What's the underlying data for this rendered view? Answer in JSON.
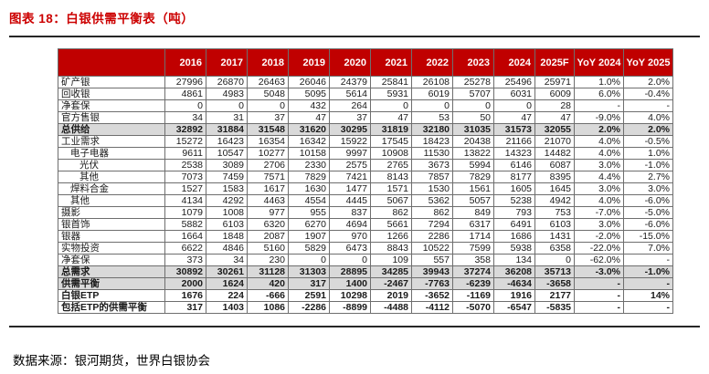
{
  "page": {
    "title": "图表 18：白银供需平衡表（吨）",
    "source": "数据来源：银河期货，世界白银协会"
  },
  "colors": {
    "title": "#CC0000",
    "header_bg": "#C00000",
    "header_text": "#FFFFFF",
    "highlight_bg": "#D9D9D9"
  },
  "table": {
    "label_header": "",
    "columns": [
      "2016",
      "2017",
      "2018",
      "2019",
      "2020",
      "2021",
      "2022",
      "2023",
      "2024",
      "2025F",
      "YoY 2024",
      "YoY 2025"
    ],
    "rows": [
      {
        "label": "矿产银",
        "indent": 0,
        "style": "normal",
        "values": [
          "27996",
          "26870",
          "26463",
          "26046",
          "24379",
          "25841",
          "26108",
          "25278",
          "25496",
          "25971",
          "1.0%",
          "2.0%"
        ]
      },
      {
        "label": "回收银",
        "indent": 0,
        "style": "normal",
        "values": [
          "4861",
          "4983",
          "5048",
          "5095",
          "5614",
          "5931",
          "6019",
          "5707",
          "6031",
          "6009",
          "6.0%",
          "-0.4%"
        ]
      },
      {
        "label": "净套保",
        "indent": 0,
        "style": "normal",
        "values": [
          "0",
          "0",
          "0",
          "432",
          "264",
          "0",
          "0",
          "0",
          "0",
          "28",
          "-",
          "-"
        ]
      },
      {
        "label": "官方售银",
        "indent": 0,
        "style": "normal",
        "values": [
          "34",
          "31",
          "37",
          "47",
          "37",
          "47",
          "53",
          "50",
          "47",
          "47",
          "-9.0%",
          "4.0%"
        ]
      },
      {
        "label": "总供给",
        "indent": 0,
        "style": "total",
        "values": [
          "32892",
          "31884",
          "31548",
          "31620",
          "30295",
          "31819",
          "32180",
          "31035",
          "31573",
          "32055",
          "2.0%",
          "2.0%"
        ]
      },
      {
        "label": "工业需求",
        "indent": 0,
        "style": "normal",
        "values": [
          "15272",
          "16423",
          "16354",
          "16342",
          "15922",
          "17545",
          "18423",
          "20438",
          "21166",
          "21070",
          "4.0%",
          "-0.5%"
        ]
      },
      {
        "label": "电子电器",
        "indent": 1,
        "style": "normal",
        "values": [
          "9611",
          "10547",
          "10277",
          "10158",
          "9997",
          "10908",
          "11530",
          "13822",
          "14323",
          "14482",
          "4.0%",
          "1.0%"
        ]
      },
      {
        "label": "光伏",
        "indent": 2,
        "style": "normal",
        "values": [
          "2538",
          "3089",
          "2706",
          "2330",
          "2575",
          "2765",
          "3673",
          "5994",
          "6146",
          "6087",
          "3.0%",
          "-1.0%"
        ]
      },
      {
        "label": "其他",
        "indent": 2,
        "style": "normal",
        "values": [
          "7073",
          "7459",
          "7571",
          "7829",
          "7421",
          "8143",
          "7857",
          "7829",
          "8177",
          "8395",
          "4.4%",
          "2.7%"
        ]
      },
      {
        "label": "焊料合金",
        "indent": 1,
        "style": "normal",
        "values": [
          "1527",
          "1583",
          "1617",
          "1630",
          "1477",
          "1571",
          "1530",
          "1561",
          "1605",
          "1645",
          "3.0%",
          "3.0%"
        ]
      },
      {
        "label": "其他",
        "indent": 1,
        "style": "normal",
        "values": [
          "4134",
          "4292",
          "4463",
          "4554",
          "4445",
          "5067",
          "5362",
          "5057",
          "5238",
          "4942",
          "4.0%",
          "-6.0%"
        ]
      },
      {
        "label": "摄影",
        "indent": 0,
        "style": "normal",
        "values": [
          "1079",
          "1008",
          "977",
          "955",
          "837",
          "862",
          "862",
          "849",
          "793",
          "753",
          "-7.0%",
          "-5.0%"
        ]
      },
      {
        "label": "银首饰",
        "indent": 0,
        "style": "normal",
        "values": [
          "5882",
          "6103",
          "6320",
          "6270",
          "4694",
          "5661",
          "7294",
          "6317",
          "6491",
          "6103",
          "3.0%",
          "-6.0%"
        ]
      },
      {
        "label": "银器",
        "indent": 0,
        "style": "normal",
        "values": [
          "1664",
          "1848",
          "2087",
          "1907",
          "970",
          "1266",
          "2286",
          "1714",
          "1686",
          "1431",
          "-2.0%",
          "-15.0%"
        ]
      },
      {
        "label": "实物投资",
        "indent": 0,
        "style": "normal",
        "values": [
          "6622",
          "4846",
          "5160",
          "5829",
          "6473",
          "8843",
          "10522",
          "7599",
          "5938",
          "6358",
          "-22.0%",
          "7.0%"
        ]
      },
      {
        "label": "净套保",
        "indent": 0,
        "style": "normal",
        "values": [
          "373",
          "34",
          "230",
          "0",
          "0",
          "109",
          "557",
          "358",
          "134",
          "0",
          "-62.0%",
          "-"
        ]
      },
      {
        "label": "总需求",
        "indent": 0,
        "style": "total",
        "values": [
          "30892",
          "30261",
          "31128",
          "31303",
          "28895",
          "34285",
          "39943",
          "37274",
          "36208",
          "35713",
          "-3.0%",
          "-1.0%"
        ]
      },
      {
        "label": "供需平衡",
        "indent": 0,
        "style": "total",
        "values": [
          "2000",
          "1624",
          "420",
          "317",
          "1400",
          "-2467",
          "-7763",
          "-6239",
          "-4634",
          "-3658",
          "-",
          "-"
        ]
      },
      {
        "label": "白银ETP",
        "indent": 0,
        "style": "bold",
        "values": [
          "1676",
          "224",
          "-666",
          "2591",
          "10298",
          "2019",
          "-3652",
          "-1169",
          "1916",
          "2177",
          "-",
          "14%"
        ]
      },
      {
        "label": "包括ETP的供需平衡",
        "indent": 0,
        "style": "bold",
        "values": [
          "317",
          "1403",
          "1086",
          "-2286",
          "-8899",
          "-4488",
          "-4112",
          "-5070",
          "-6547",
          "-5835",
          "-",
          "-"
        ]
      }
    ]
  }
}
